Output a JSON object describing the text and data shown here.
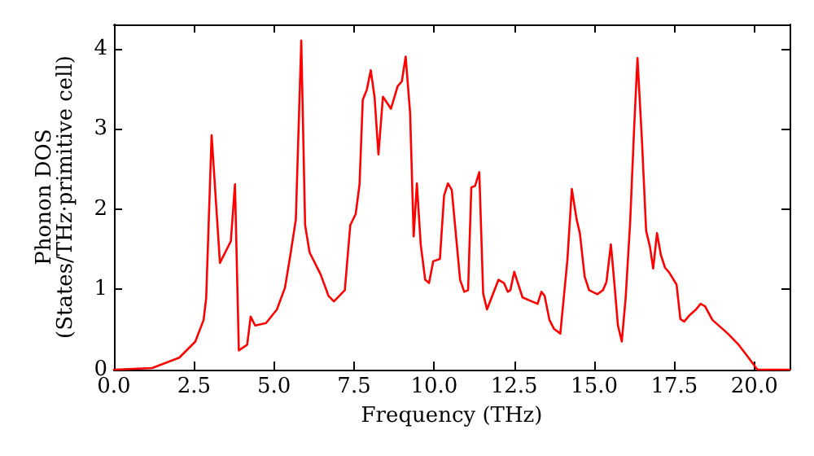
{
  "chart_data": {
    "type": "line",
    "xlabel": "Frequency (THz)",
    "ylabel": "Phonon DOS\n(States/THz·primitive cell)",
    "x": [
      0,
      1.19,
      2.04,
      2.54,
      2.8,
      2.88,
      3.05,
      3.31,
      3.65,
      3.78,
      3.9,
      4.16,
      4.27,
      4.41,
      4.75,
      5.09,
      5.34,
      5.51,
      5.68,
      5.85,
      5.97,
      6.11,
      6.45,
      6.7,
      6.87,
      7.21,
      7.38,
      7.55,
      7.67,
      7.77,
      7.9,
      8.02,
      8.14,
      8.26,
      8.4,
      8.65,
      8.86,
      8.99,
      9.11,
      9.25,
      9.36,
      9.46,
      9.58,
      9.72,
      9.84,
      9.97,
      10.18,
      10.31,
      10.43,
      10.55,
      10.81,
      10.94,
      11.06,
      11.16,
      11.28,
      11.41,
      11.53,
      11.65,
      12.01,
      12.18,
      12.3,
      12.38,
      12.5,
      12.76,
      13.23,
      13.35,
      13.45,
      13.6,
      13.74,
      13.94,
      14.16,
      14.3,
      14.45,
      14.55,
      14.7,
      14.84,
      15.1,
      15.27,
      15.38,
      15.52,
      15.64,
      15.74,
      15.86,
      15.98,
      16.12,
      16.25,
      16.35,
      16.49,
      16.62,
      16.74,
      16.84,
      16.96,
      17.08,
      17.21,
      17.34,
      17.57,
      17.69,
      17.81,
      17.98,
      18.18,
      18.32,
      18.46,
      18.69,
      19.17,
      19.51,
      19.76,
      20.02,
      20.1,
      21.1
    ],
    "series": [
      {
        "color": "#ff0000",
        "values": [
          0,
          0.02,
          0.15,
          0.35,
          0.62,
          0.89,
          2.92,
          1.33,
          1.6,
          2.31,
          0.24,
          0.31,
          0.66,
          0.55,
          0.58,
          0.75,
          1.02,
          1.43,
          1.87,
          4.1,
          1.8,
          1.46,
          1.19,
          0.92,
          0.85,
          0.99,
          1.8,
          1.94,
          2.31,
          3.36,
          3.49,
          3.73,
          3.39,
          2.68,
          3.4,
          3.25,
          3.53,
          3.59,
          3.9,
          3.19,
          1.66,
          2.32,
          1.56,
          1.12,
          1.08,
          1.35,
          1.38,
          2.17,
          2.32,
          2.24,
          1.12,
          0.97,
          0.99,
          2.27,
          2.29,
          2.46,
          0.95,
          0.75,
          1.12,
          1.08,
          0.97,
          0.99,
          1.22,
          0.9,
          0.82,
          0.97,
          0.92,
          0.62,
          0.51,
          0.45,
          1.36,
          2.25,
          1.87,
          1.7,
          1.16,
          0.99,
          0.94,
          0.99,
          1.09,
          1.56,
          1.02,
          0.55,
          0.35,
          0.89,
          1.83,
          3.05,
          3.88,
          2.85,
          1.73,
          1.53,
          1.26,
          1.7,
          1.43,
          1.27,
          1.21,
          1.06,
          0.63,
          0.6,
          0.68,
          0.75,
          0.82,
          0.79,
          0.62,
          0.45,
          0.31,
          0.18,
          0.04,
          0,
          0
        ]
      }
    ],
    "xlim": [
      0,
      21.1
    ],
    "ylim": [
      0,
      4.3
    ],
    "xticks": [
      {
        "value": 0,
        "label": "0.0"
      },
      2.5,
      {
        "value": 5,
        "label": "5.0"
      },
      7.5,
      {
        "value": 10,
        "label": "10.0"
      },
      12.5,
      {
        "value": 15,
        "label": "15.0"
      },
      17.5,
      {
        "value": 20,
        "label": "20.0"
      }
    ],
    "yticks": [
      0,
      1,
      2,
      3,
      4
    ],
    "grid": false,
    "marker": "none",
    "line_style": "solid"
  }
}
